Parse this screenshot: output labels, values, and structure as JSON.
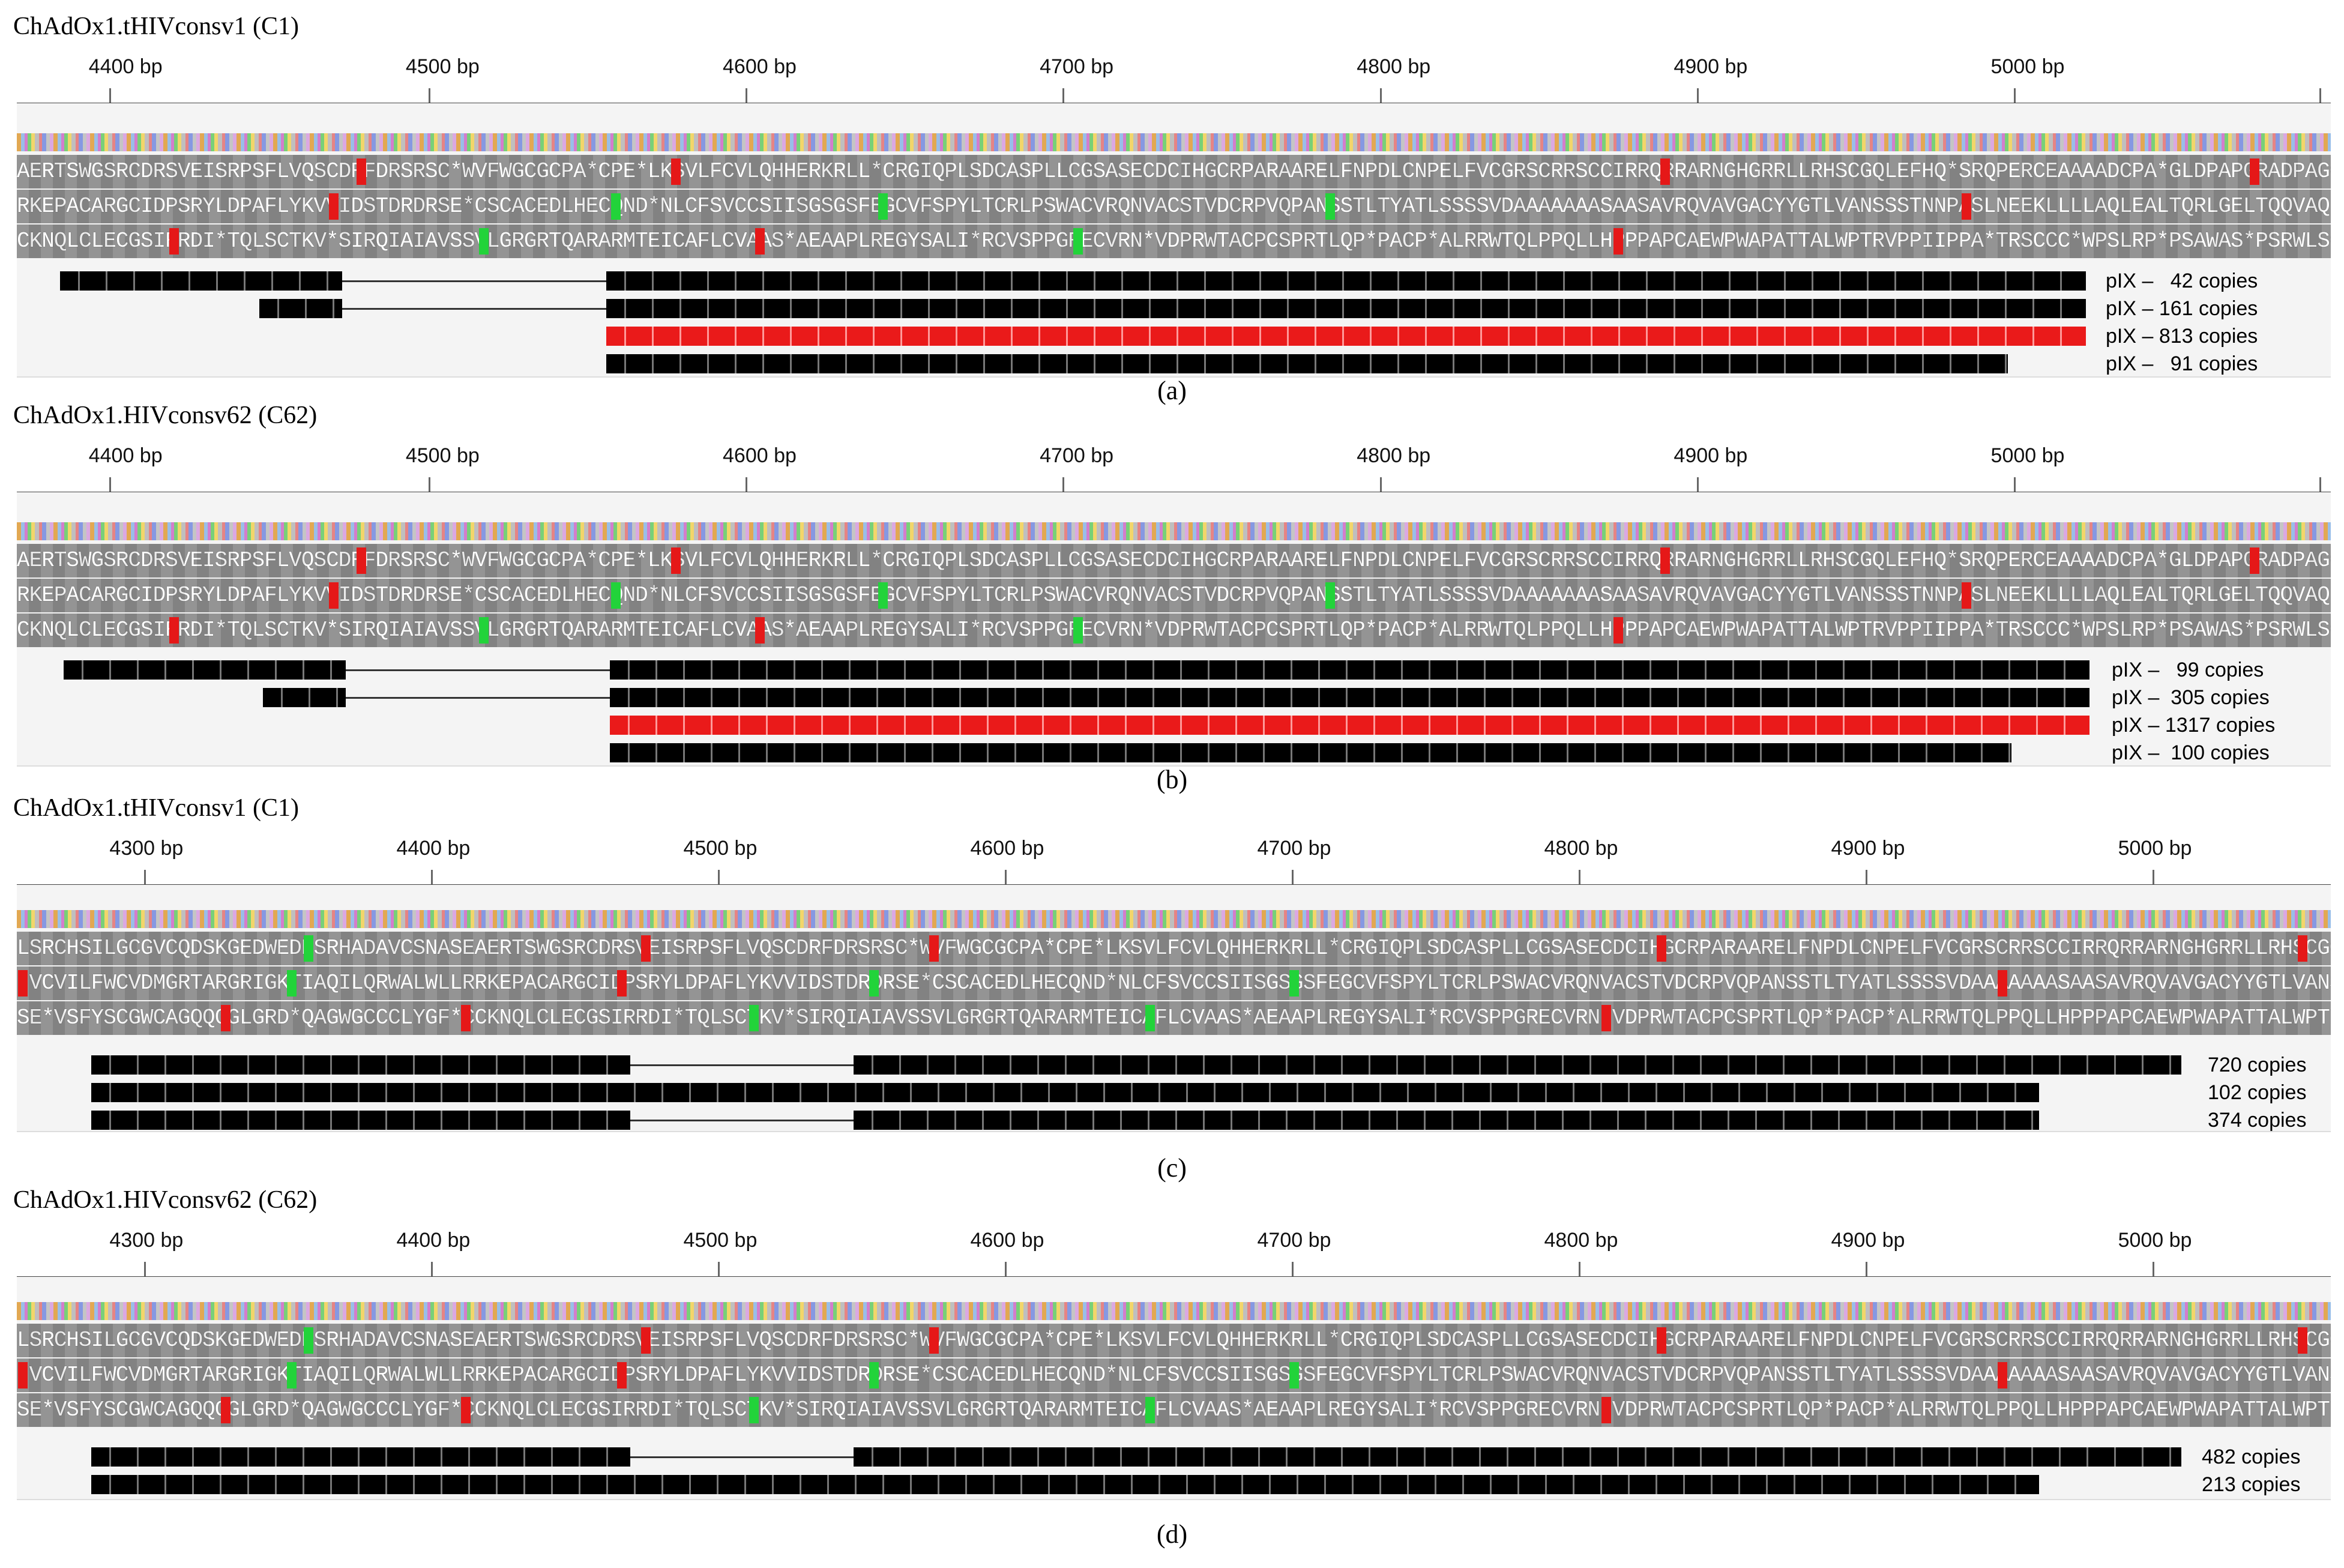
{
  "panels": [
    {
      "title": "ChAdOx1.tHIVconsv1 (C1)",
      "ticks": [
        "4400 bp",
        "4500 bp",
        "4600 bp",
        "4700 bp",
        "4800 bp",
        "4900 bp",
        "5000 bp"
      ],
      "frames": [
        "AERTSWGSRCDRSVEISRPSFLVQSCDRFDRSRSC*WVFWGCGCPA*CPE*LKSVLFCVLQHHERKRLL*CRGIQPLSDCASPLLCGSASECDCIHGCRPARAARELFNPDLCNPELFVCGRSCRRSCCIRRQRRARNGHGRRLLRHSCGQLEFHQ*SRQPERCEAAAADCPA*GLDPAPGRADPAGCSAAGADACRCGHGEIQIKNESINKRRRLLILTQSLNLYLIFRAR*ALDHRSRSLS",
        "RKEPACARGCIDPSRYLDPAFLYKVVIDSTDRDRSE*CSCACEDLHECQND*NLCFSVCCSIISGSGSFEGCVFSPYLTCRLPSWACVRQNVACSTVDCRPVQPANSSTLTYATLSSSSVDAAAAAAASAASAVRQVAVGACYYGTLVANSSSTNNPASLNEEKLLLLAQLEALTQRLGELTQQVAQLQEQTRAAVATVKSK*KNQ*INCDCC*F*HRV*IFI*FFARCRPWTTCLDH*",
        "CKNQLCLECGSIRRDI*TQLSCTKV*SIRQIAIAVSSVLGRGRTQARARMTEICAFLCVAAS*AEAAPLREGYSALI*RCVSPPGRECVRN*VDPRWTACPCSPRTLQP*PACP*ALRRWTQLPPQLLHPPPAPCAEWPWAPATTALWPTRVPPIIPPA*TRSCCC*WPSLRP*PSAWAS*PSRWLSCRSRRGPRLPR*NPNKK*INK*TETVWDFNTESESLFDFSRAVCPCPPVSIIEH"
      ],
      "reads": [
        {
          "label": "pIX –   42 copies",
          "highlight": false
        },
        {
          "label": "pIX – 161 copies",
          "highlight": false
        },
        {
          "label": "pIX – 813 copies",
          "highlight": true
        },
        {
          "label": "pIX –   91 copies",
          "highlight": false
        }
      ],
      "caption": "(a)"
    },
    {
      "title": "ChAdOx1.HIVconsv62 (C62)",
      "ticks": [
        "4400 bp",
        "4500 bp",
        "4600 bp",
        "4700 bp",
        "4800 bp",
        "4900 bp",
        "5000 bp"
      ],
      "frames": [
        "AERTSWGSRCDRSVEISRPSFLVQSCDRFDRSRSC*WVFWGCGCPA*CPE*LKSVLFCVLQHHERKRLL*CRGIQPLSDCASPLLCGSASECDCIHGCRPARAARELFNPDLCNPELFVCGRSCRRSCCIRRQRRARNGHGRRLLRHSCGQLEFHQ*SRQPERCEAAAADCPA*GLDPAPGRADPAGCSAAGADACRCGHGEIQIKNESINKRRRLLILTQSLNLYLIFRAR*ALDHRSRSLST",
        "RKEPACARGCIDPSRYLDPAFLYKVVIDSTDRDRSE*CSCACEDLHECQND*NLCFSVCCSIISGSGSFEGCVFSPYLTCRLPSWACVRQNVACSTVDCRPVQPANSSTLTYATLSSSSVDAAAAAAASAASAVRQVAVGACYYGTLVANSSSTNNPASLNEEKLLLLAQLEALTQRLGELTQQVAQLQEQTRAAVATVKSK*KNQ*INCDCC*F*HRV*IFI*FFARCRPWTTCLDH*",
        "CKNQLCLECGSIRRDI*TQLSCTKV*SIRQIAIAVSSVLGRGRTQARARMTEICAFLCVAAS*AEAAPLREGYSALI*RCVSPPGRECVRN*VDPRWTACPCSPRTLQP*PACP*ALRRWTQLPPQLLHPPPAPCAEWPWAPATTALWPTRVPPIIPPA*TRSCCC*WPSLRP*PSAWAS*PSRWLSCRSRRGPRLPR*NPNKK*INK*TETVWDFNTESESLFDFSRAVCPCPPVSIIEH"
      ],
      "reads": [
        {
          "label": "pIX –   99 copies",
          "highlight": false
        },
        {
          "label": "pIX –  305 copies",
          "highlight": false
        },
        {
          "label": "pIX – 1317 copies",
          "highlight": true
        },
        {
          "label": "pIX –  100 copies",
          "highlight": false
        }
      ],
      "caption": "(b)"
    },
    {
      "title": "ChAdOx1.tHIVconsv1 (C1)",
      "ticks": [
        "4300 bp",
        "4400 bp",
        "4500 bp",
        "4600 bp",
        "4700 bp",
        "4800 bp",
        "4900 bp",
        "5000 bp"
      ],
      "frames": [
        "LSRCHSILGCGVCQDSKGEDWEDNSRHADAVCSNASEAERTSWGSRCDRSVEISRPSFLVQSCDRFDRSRSC*WVFWGCGCPA*CPE*LKSVLFCVLQHHERKRLL*CRGIQPLSDCASPLLCGSASECDCIHGCRPARAARELFNPDLCNPELFVCGRSCRRSCCIRRQRRARNGHGRRLLRHSCGQLEFHQ*SRQPERCEAAAADCPA*GLDPAPGRADPAGCSAAGADACRCGHGEIQIKNESINKRRRLLILTQSLNLYLIFRAR*AL",
        "*VCVILFWCVDMGRTARGRIGKTIAQILQRWALWLLRRKEPACARGCIDPSRYLDPAFLYKVVIDSTDRDRSE*CSCACEDLHECQND*NLCFSVCCSIISGSGSFEGCVFSPYLTCRLPSWACVRQNVACSTVDCRPVQPANSSTLTYATLSSSSVDAAAAAAASAASAVRQVAVGACYYGTLVANSSSTNNPASLNEEKLLLLAQLEALTQRLGELTQQVAQLQEQTRAAVATVKSK*KNQ*INCDCC*F*HRV*IFI*FFARCRPV",
        "SE*VSFYSCGWCAGQQGGLGRD*QAGWGCCCLYGF*CCKNQLCLECGSIRRDI*TQLSCTKV*SIRQIAIAVSSVLGRGRTQARARMTEICAFLCVAAS*AEAAPLREGYSALI*RCVSPPGRECVRN*VDPRWTACPCSPRTLQP*PACP*ALRRWTQLPPQLLHPPPAPCAEWPWAPATTALWPTRVPPIIPPA*TRSCCC*WPSLRP*PSAWAS*PSRWLSCRSRRGPRLPR*NPNKK*INK*TETVWDFNTESESLFDFSRAVCP"
      ],
      "reads": [
        {
          "label": "720 copies",
          "highlight": false
        },
        {
          "label": "102 copies",
          "highlight": false
        },
        {
          "label": "374 copies",
          "highlight": false
        }
      ],
      "caption": "(c)"
    },
    {
      "title": "ChAdOx1.HIVconsv62 (C62)",
      "ticks": [
        "4300 bp",
        "4400 bp",
        "4500 bp",
        "4600 bp",
        "4700 bp",
        "4800 bp",
        "4900 bp",
        "5000 bp"
      ],
      "frames": [
        "LSRCHSILGCGVCQDSKGEDWEDNSRHADAVCSNASEAERTSWGSRCDRSVEISRPSFLVQSCDRFDRSRSC*WVFWGCGCPA*CPE*LKSVLFCVLQHHERKRLL*CRGIQPLSDCASPLLCGSASECDCIHGCRPARAARELFNPDLCNPELFVCGRSCRRSCCIRRQRRARNGHGRRLLRHSCGQLEFHQ*SRQPERCEAAAADCPA*GLDPAPGRADPAGCSAAGADACRCGHGEIQIKNESINKRRRLLILTQSLNLYLIFRAR*AL",
        "*VCVILFWCVDMGRTARGRIGKTIAQILQRWALWLLRRKEPACARGCIDPSRYLDPAFLYKVVIDSTDRDRSE*CSCACEDLHECQND*NLCFSVCCSIISGSGSFEGCVFSPYLTCRLPSWACVRQNVACSTVDCRPVQPANSSTLTYATLSSSSVDAAAAAAASAASAVRQVAVGACYYGTLVANSSSTNNPASLNEEKLLLLAQLEALTQRLGELTQQVAQLQEQTRAAVATVKSK*KNQ*INCDCC*F*HRV*IFI*FFARCRPV",
        "SE*VSFYSCGWCAGQQGGLGRD*QAGWGCCCLYGF*CCKNQLCLECGSIRRDI*TQLSCTKV*SIRQIAIAVSSVLGRGRTQARARMTEICAFLCVAAS*AEAAPLREGYSALI*RCVSPPGRECVRN*VDPRWTACPCSPRTLQP*PACP*ALRRWTQLPPQLLHPPPAPCAEWPWAPATTALWPTRVPPIIPPA*TRSCCC*WPSLRP*PSAWAS*PSRWLSCRSRRGPRLPR*NPNKK*INK*TETVWDFNTESESLFDFSRAVCP"
      ],
      "reads": [
        {
          "label": "482 copies",
          "highlight": false
        },
        {
          "label": "213 copies",
          "highlight": false
        }
      ],
      "caption": "(d)"
    }
  ]
}
